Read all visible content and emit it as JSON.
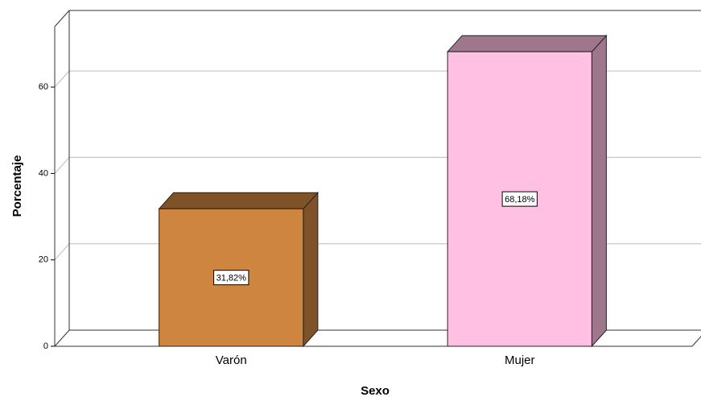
{
  "chart_data": {
    "type": "bar3d",
    "categories": [
      "Varón",
      "Mujer"
    ],
    "values": [
      31.82,
      68.18
    ],
    "value_labels": [
      "31,82%",
      "68,18%"
    ],
    "colors": [
      "#cd853f",
      "#ffc0e3"
    ],
    "ylim": [
      0,
      74
    ],
    "yticks": [
      0,
      20,
      40,
      60
    ],
    "y_label": "Porcentaje",
    "x_label": "Sexo",
    "grid": true
  }
}
